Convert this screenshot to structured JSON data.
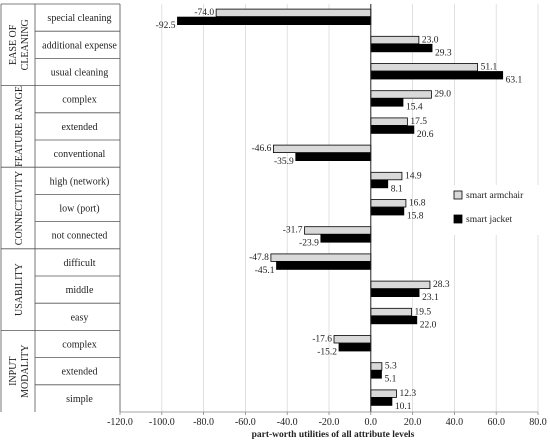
{
  "chart_data": {
    "type": "bar",
    "orientation": "horizontal",
    "title": "",
    "xlabel": "part-worth  utilities of all attribute levels",
    "ylabel": "",
    "xlim": [
      -120,
      80
    ],
    "xticks": [
      -120,
      -100,
      -80,
      -60,
      -40,
      -20,
      0,
      20,
      40,
      60,
      80
    ],
    "xtick_labels": [
      "-120.0",
      "-100.0",
      "-80.0",
      "-60.0",
      "-40.0",
      "-20.0",
      "0.0",
      "20.0",
      "40.0",
      "60.0",
      "80.0"
    ],
    "grid": "vertical",
    "legend_position": "right",
    "groups": [
      {
        "name": "EASE OF CLEANING",
        "lines": [
          "EASE OF",
          "CLEANING"
        ],
        "categories": [
          "special cleaning",
          "additional expense",
          "usual cleaning"
        ]
      },
      {
        "name": "FEATURE RANGE",
        "lines": [
          "FEATURE RANGE"
        ],
        "categories": [
          "complex",
          "extended",
          "conventional"
        ]
      },
      {
        "name": "CONNECTIVITY",
        "lines": [
          "CONNECTIVITY"
        ],
        "categories": [
          "high (network)",
          "low (port)",
          "not connected"
        ]
      },
      {
        "name": "USABILITY",
        "lines": [
          "USABILITY"
        ],
        "categories": [
          "difficult",
          "middle",
          "easy"
        ]
      },
      {
        "name": "INPUT MODALITY",
        "lines": [
          "INPUT",
          "MODALITY"
        ],
        "categories": [
          "complex",
          "extended",
          "simple"
        ]
      }
    ],
    "categories": [
      "special cleaning",
      "additional expense",
      "usual cleaning",
      "complex",
      "extended",
      "conventional",
      "high (network)",
      "low (port)",
      "not connected",
      "difficult",
      "middle",
      "easy",
      "complex",
      "extended",
      "simple"
    ],
    "series": [
      {
        "name": "smart armchair",
        "color": "#d9d9d9",
        "values": [
          -74.0,
          23.0,
          51.1,
          29.0,
          17.5,
          -46.6,
          14.9,
          16.8,
          -31.7,
          -47.8,
          28.3,
          19.5,
          -17.6,
          5.3,
          12.3
        ],
        "labels": [
          "-74.0",
          "23.0",
          "51.1",
          "29.0",
          "17.5",
          "-46.6",
          "14.9",
          "16.8",
          "-31.7",
          "-47.8",
          "28.3",
          "19.5",
          "-17.6",
          "5.3",
          "12.3"
        ]
      },
      {
        "name": "smart jacket",
        "color": "#000000",
        "values": [
          -92.5,
          29.3,
          63.1,
          15.4,
          20.6,
          -35.9,
          8.1,
          15.8,
          -23.9,
          -45.1,
          23.1,
          22.0,
          -15.2,
          5.1,
          10.1
        ],
        "labels": [
          "-92.5",
          "29.3",
          "63.1",
          "15.4",
          "20.6",
          "-35.9",
          "8.1",
          "15.8",
          "-23.9",
          "-45.1",
          "23.1",
          "22.0",
          "-15.2",
          "5.1",
          "10.1"
        ]
      }
    ]
  }
}
